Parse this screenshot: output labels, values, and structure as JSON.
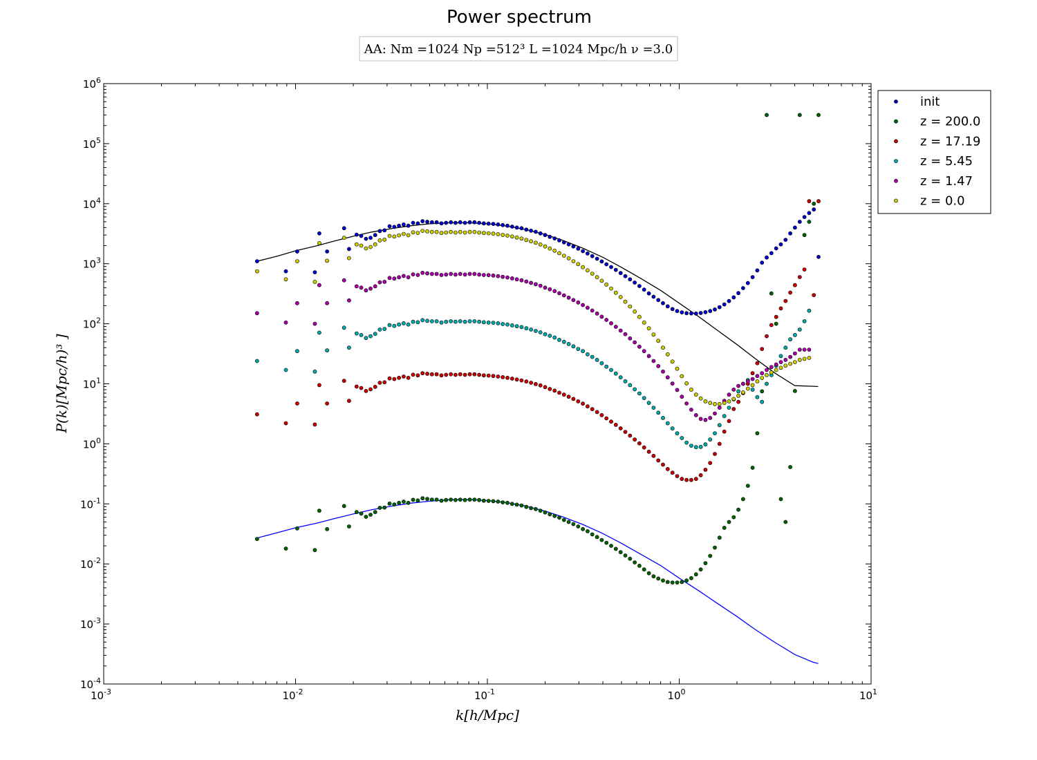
{
  "chart_data": {
    "type": "scatter",
    "title": "Power spectrum",
    "subtitle": "AA:  Nm =1024  Np =512³   L =1024 Mpc/h  ν =3.0",
    "xlabel": "k[h/Mpc]",
    "ylabel": "P(k)[Mpc/h)³ ]",
    "xscale": "log",
    "yscale": "log",
    "xlim": [
      0.001,
      10
    ],
    "ylim": [
      0.0001,
      1000000
    ],
    "x_ticks": [
      {
        "base": "10",
        "exp": "-3"
      },
      {
        "base": "10",
        "exp": "-2"
      },
      {
        "base": "10",
        "exp": "-1"
      },
      {
        "base": "10",
        "exp": "0"
      },
      {
        "base": "10",
        "exp": "1"
      }
    ],
    "y_ticks": [
      {
        "base": "10",
        "exp": "-4"
      },
      {
        "base": "10",
        "exp": "-3"
      },
      {
        "base": "10",
        "exp": "-2"
      },
      {
        "base": "10",
        "exp": "-1"
      },
      {
        "base": "10",
        "exp": "0"
      },
      {
        "base": "10",
        "exp": "1"
      },
      {
        "base": "10",
        "exp": "2"
      },
      {
        "base": "10",
        "exp": "3"
      },
      {
        "base": "10",
        "exp": "4"
      },
      {
        "base": "10",
        "exp": "5"
      },
      {
        "base": "10",
        "exp": "6"
      }
    ],
    "grid": false,
    "legend_position": "outside-top-right",
    "k": [
      0.0063,
      0.0089,
      0.0102,
      0.0126,
      0.0133,
      0.0146,
      0.0179,
      0.019,
      0.0208,
      0.022,
      0.0233,
      0.0246,
      0.026,
      0.0275,
      0.0291,
      0.0309,
      0.0327,
      0.0346,
      0.0366,
      0.0387,
      0.041,
      0.0434,
      0.0459,
      0.0486,
      0.0514,
      0.0544,
      0.0576,
      0.0609,
      0.0645,
      0.0682,
      0.0722,
      0.0764,
      0.0809,
      0.0856,
      0.0906,
      0.0958,
      0.1014,
      0.1073,
      0.1136,
      0.1202,
      0.1272,
      0.1346,
      0.1424,
      0.1507,
      0.1595,
      0.1688,
      0.1786,
      0.189,
      0.2,
      0.2116,
      0.224,
      0.237,
      0.2508,
      0.2654,
      0.2808,
      0.2972,
      0.3145,
      0.3328,
      0.3522,
      0.3727,
      0.3944,
      0.4173,
      0.4416,
      0.4673,
      0.4946,
      0.5234,
      0.5538,
      0.5861,
      0.6202,
      0.6563,
      0.6945,
      0.7349,
      0.7777,
      0.823,
      0.8709,
      0.9216,
      0.9752,
      1.032,
      1.0921,
      1.1556,
      1.2229,
      1.2941,
      1.3694,
      1.4491,
      1.5335,
      1.6227,
      1.7172,
      1.8171,
      1.9229,
      2.0348,
      2.1533,
      2.2786,
      2.4113,
      2.5516,
      2.7001,
      2.8573,
      3.0236,
      3.1996,
      3.3858,
      3.5829,
      3.7915,
      4.0122,
      4.2457,
      4.4928,
      4.7543,
      5.0311,
      5.3239
    ],
    "series": [
      {
        "name": "init",
        "color": "#0000cc",
        "values": [
          1100,
          750,
          1600,
          720,
          3200,
          1600,
          3900,
          1760,
          3050,
          2900,
          2600,
          2700,
          3000,
          3500,
          3600,
          4200,
          4100,
          4300,
          4500,
          4300,
          4800,
          4700,
          5100,
          5000,
          4900,
          4900,
          4700,
          4800,
          4900,
          4800,
          4900,
          4800,
          4900,
          4900,
          4800,
          4700,
          4650,
          4600,
          4500,
          4400,
          4300,
          4150,
          4000,
          3900,
          3700,
          3550,
          3400,
          3200,
          3000,
          2800,
          2640,
          2450,
          2270,
          2100,
          1940,
          1780,
          1620,
          1480,
          1340,
          1210,
          1090,
          980,
          880,
          790,
          700,
          620,
          550,
          485,
          425,
          370,
          320,
          282,
          248,
          220,
          195,
          176,
          163,
          155,
          150,
          149,
          148,
          151,
          156,
          163,
          173,
          189,
          210,
          239,
          275,
          324,
          392,
          476,
          598,
          773,
          1040,
          1270,
          1500,
          1800,
          2100,
          2500,
          3200,
          4000,
          5000,
          6000,
          7000,
          8000,
          1300
        ]
      },
      {
        "name": "z = 200.0",
        "color": "#006400",
        "values": [
          0.026,
          0.018,
          0.039,
          0.017,
          0.077,
          0.038,
          0.092,
          0.042,
          0.073,
          0.069,
          0.061,
          0.066,
          0.073,
          0.086,
          0.087,
          0.101,
          0.098,
          0.104,
          0.109,
          0.104,
          0.117,
          0.114,
          0.124,
          0.121,
          0.118,
          0.118,
          0.113,
          0.116,
          0.118,
          0.116,
          0.118,
          0.116,
          0.118,
          0.118,
          0.116,
          0.113,
          0.112,
          0.111,
          0.109,
          0.106,
          0.104,
          0.1,
          0.097,
          0.094,
          0.089,
          0.085,
          0.082,
          0.077,
          0.072,
          0.067,
          0.063,
          0.059,
          0.054,
          0.05,
          0.046,
          0.042,
          0.038,
          0.035,
          0.031,
          0.028,
          0.025,
          0.0225,
          0.02,
          0.0178,
          0.0157,
          0.0138,
          0.0122,
          0.0106,
          0.0093,
          0.0081,
          0.007,
          0.0062,
          0.0057,
          0.0053,
          0.005,
          0.0049,
          0.0049,
          0.005,
          0.0053,
          0.0058,
          0.0067,
          0.0081,
          0.0103,
          0.0136,
          0.0187,
          0.0274,
          0.04,
          0.05,
          0.06,
          0.08,
          0.12,
          0.2,
          0.4,
          1.5,
          7.5,
          300000,
          320,
          100,
          0.12,
          0.05,
          0.41,
          7.6,
          300000,
          3000,
          5000,
          10000,
          300000
        ]
      },
      {
        "name": "z = 17.19",
        "color": "#cc0000",
        "values": [
          3.1,
          2.2,
          4.7,
          2.1,
          9.5,
          4.7,
          11.2,
          5.2,
          9.0,
          8.5,
          7.6,
          8.1,
          8.9,
          10.4,
          10.6,
          12.3,
          12.0,
          12.6,
          13.2,
          12.6,
          14.2,
          13.8,
          15.0,
          14.7,
          14.4,
          14.4,
          13.8,
          14.1,
          14.4,
          14.1,
          14.4,
          14.1,
          14.4,
          14.4,
          14.1,
          13.8,
          13.7,
          13.5,
          13.2,
          12.9,
          12.6,
          12.2,
          11.8,
          11.4,
          10.9,
          10.4,
          9.9,
          9.4,
          8.8,
          8.2,
          7.7,
          7.1,
          6.6,
          6.1,
          5.6,
          5.1,
          4.67,
          4.2,
          3.78,
          3.38,
          3.0,
          2.66,
          2.35,
          2.07,
          1.81,
          1.58,
          1.37,
          1.18,
          1.02,
          0.87,
          0.74,
          0.63,
          0.53,
          0.45,
          0.38,
          0.33,
          0.29,
          0.26,
          0.25,
          0.25,
          0.26,
          0.3,
          0.37,
          0.48,
          0.68,
          1.0,
          1.6,
          2.4,
          3.8,
          5.0,
          7.0,
          10.0,
          15.0,
          22.0,
          38.0,
          62.0,
          95.0,
          130.0,
          180.0,
          240.0,
          330.0,
          440.0,
          600.0,
          800.0,
          11000.0,
          300.0,
          11000
        ]
      },
      {
        "name": "z = 5.45",
        "color": "#00aaaa",
        "values": [
          24,
          17,
          35,
          16,
          71,
          36,
          86,
          40,
          69,
          65,
          58,
          62,
          68,
          80,
          82,
          95,
          92,
          97,
          102,
          97,
          108,
          106,
          115,
          112,
          110,
          110,
          105,
          108,
          110,
          108,
          110,
          108,
          110,
          110,
          108,
          106,
          105,
          104,
          102,
          99,
          97,
          94,
          91,
          88,
          84,
          80,
          76,
          72,
          67,
          63,
          59,
          54,
          50,
          46,
          42,
          38,
          35,
          31,
          28,
          25,
          22,
          19.3,
          17,
          14.8,
          12.8,
          11,
          9.5,
          8.1,
          6.9,
          5.8,
          4.8,
          4.0,
          3.3,
          2.7,
          2.2,
          1.8,
          1.5,
          1.25,
          1.05,
          0.93,
          0.88,
          0.89,
          0.98,
          1.18,
          1.5,
          2.05,
          2.9,
          4.0,
          5.5,
          7.5,
          10.0,
          11.5,
          8.0,
          6.0,
          5.0,
          10.0,
          14.0,
          20.0,
          29.0,
          40.0,
          55.0,
          65.0,
          80.0,
          110.0,
          165.0
        ]
      },
      {
        "name": "z = 1.47",
        "color": "#aa00aa",
        "values": [
          150,
          105,
          220,
          100,
          440,
          220,
          530,
          245,
          420,
          400,
          360,
          385,
          420,
          490,
          500,
          580,
          565,
          595,
          625,
          595,
          665,
          650,
          705,
          690,
          675,
          675,
          650,
          660,
          675,
          660,
          675,
          660,
          675,
          675,
          660,
          650,
          645,
          635,
          620,
          605,
          590,
          570,
          550,
          530,
          505,
          480,
          455,
          430,
          400,
          375,
          350,
          323,
          297,
          272,
          248,
          226,
          205,
          185,
          166,
          148,
          131,
          116,
          102,
          89,
          77,
          67,
          57,
          49,
          41.5,
          35,
          29,
          24,
          19.7,
          16,
          12.8,
          10.1,
          7.9,
          6.1,
          4.7,
          3.7,
          3.0,
          2.6,
          2.5,
          2.7,
          3.2,
          4.0,
          5.2,
          6.6,
          8.0,
          9.2,
          10.0,
          11.0,
          12.0,
          13.5,
          15.0,
          17.0,
          19.0,
          21.0,
          23.0,
          25.0,
          28.0,
          32.0,
          37.0,
          37.0,
          37.0
        ]
      },
      {
        "name": "z = 0.0",
        "color": "#cccc00",
        "values": [
          750,
          550,
          1100,
          500,
          2200,
          1120,
          2700,
          1240,
          2100,
          2000,
          1800,
          1900,
          2100,
          2450,
          2520,
          2900,
          2830,
          2970,
          3130,
          2980,
          3330,
          3260,
          3530,
          3460,
          3380,
          3380,
          3250,
          3300,
          3380,
          3300,
          3380,
          3300,
          3380,
          3380,
          3300,
          3250,
          3220,
          3170,
          3100,
          3020,
          2940,
          2840,
          2730,
          2620,
          2490,
          2360,
          2230,
          2090,
          1940,
          1790,
          1650,
          1500,
          1360,
          1230,
          1100,
          985,
          875,
          775,
          682,
          597,
          520,
          450,
          386,
          329,
          278,
          233,
          194,
          160,
          130,
          105,
          84,
          66,
          52,
          40,
          31,
          23.5,
          17.8,
          13.4,
          10.2,
          8.0,
          6.6,
          5.7,
          5.1,
          4.8,
          4.6,
          4.6,
          4.8,
          5.1,
          5.6,
          6.3,
          7.2,
          8.3,
          9.5,
          11.0,
          12.5,
          14.0,
          15.5,
          17.0,
          18.5,
          20.0,
          21.5,
          23.0,
          25.0,
          26.0,
          27.0
        ]
      }
    ],
    "fit_lines": [
      {
        "color": "#000000",
        "k": [
          0.0063,
          0.008,
          0.01,
          0.013,
          0.016,
          0.02,
          0.025,
          0.032,
          0.04,
          0.05,
          0.063,
          0.08,
          0.1,
          0.126,
          0.158,
          0.2,
          0.25,
          0.316,
          0.4,
          0.5,
          0.63,
          0.8,
          1.0,
          1.26,
          1.58,
          2.0,
          2.5,
          3.16,
          4.0,
          5.0,
          5.3
        ],
        "values": [
          1100,
          1330,
          1640,
          2000,
          2400,
          2870,
          3370,
          3870,
          4300,
          4620,
          4800,
          4800,
          4620,
          4250,
          3710,
          3070,
          2420,
          1800,
          1280,
          870,
          570,
          360,
          220,
          132,
          78,
          45,
          26,
          15,
          9.3,
          9.1,
          9.0
        ]
      },
      {
        "color": "#0000ff",
        "k": [
          0.0063,
          0.008,
          0.01,
          0.013,
          0.016,
          0.02,
          0.025,
          0.032,
          0.04,
          0.05,
          0.063,
          0.08,
          0.1,
          0.126,
          0.158,
          0.2,
          0.25,
          0.316,
          0.4,
          0.5,
          0.63,
          0.8,
          1.0,
          1.26,
          1.58,
          2.0,
          2.5,
          3.16,
          4.0,
          5.0,
          5.3
        ],
        "values": [
          0.027,
          0.033,
          0.04,
          0.048,
          0.057,
          0.068,
          0.08,
          0.092,
          0.103,
          0.111,
          0.117,
          0.118,
          0.114,
          0.105,
          0.092,
          0.076,
          0.06,
          0.045,
          0.032,
          0.022,
          0.0145,
          0.0094,
          0.0058,
          0.0036,
          0.0022,
          0.00133,
          0.0008,
          0.00049,
          0.00031,
          0.00023,
          0.00022
        ]
      }
    ]
  }
}
